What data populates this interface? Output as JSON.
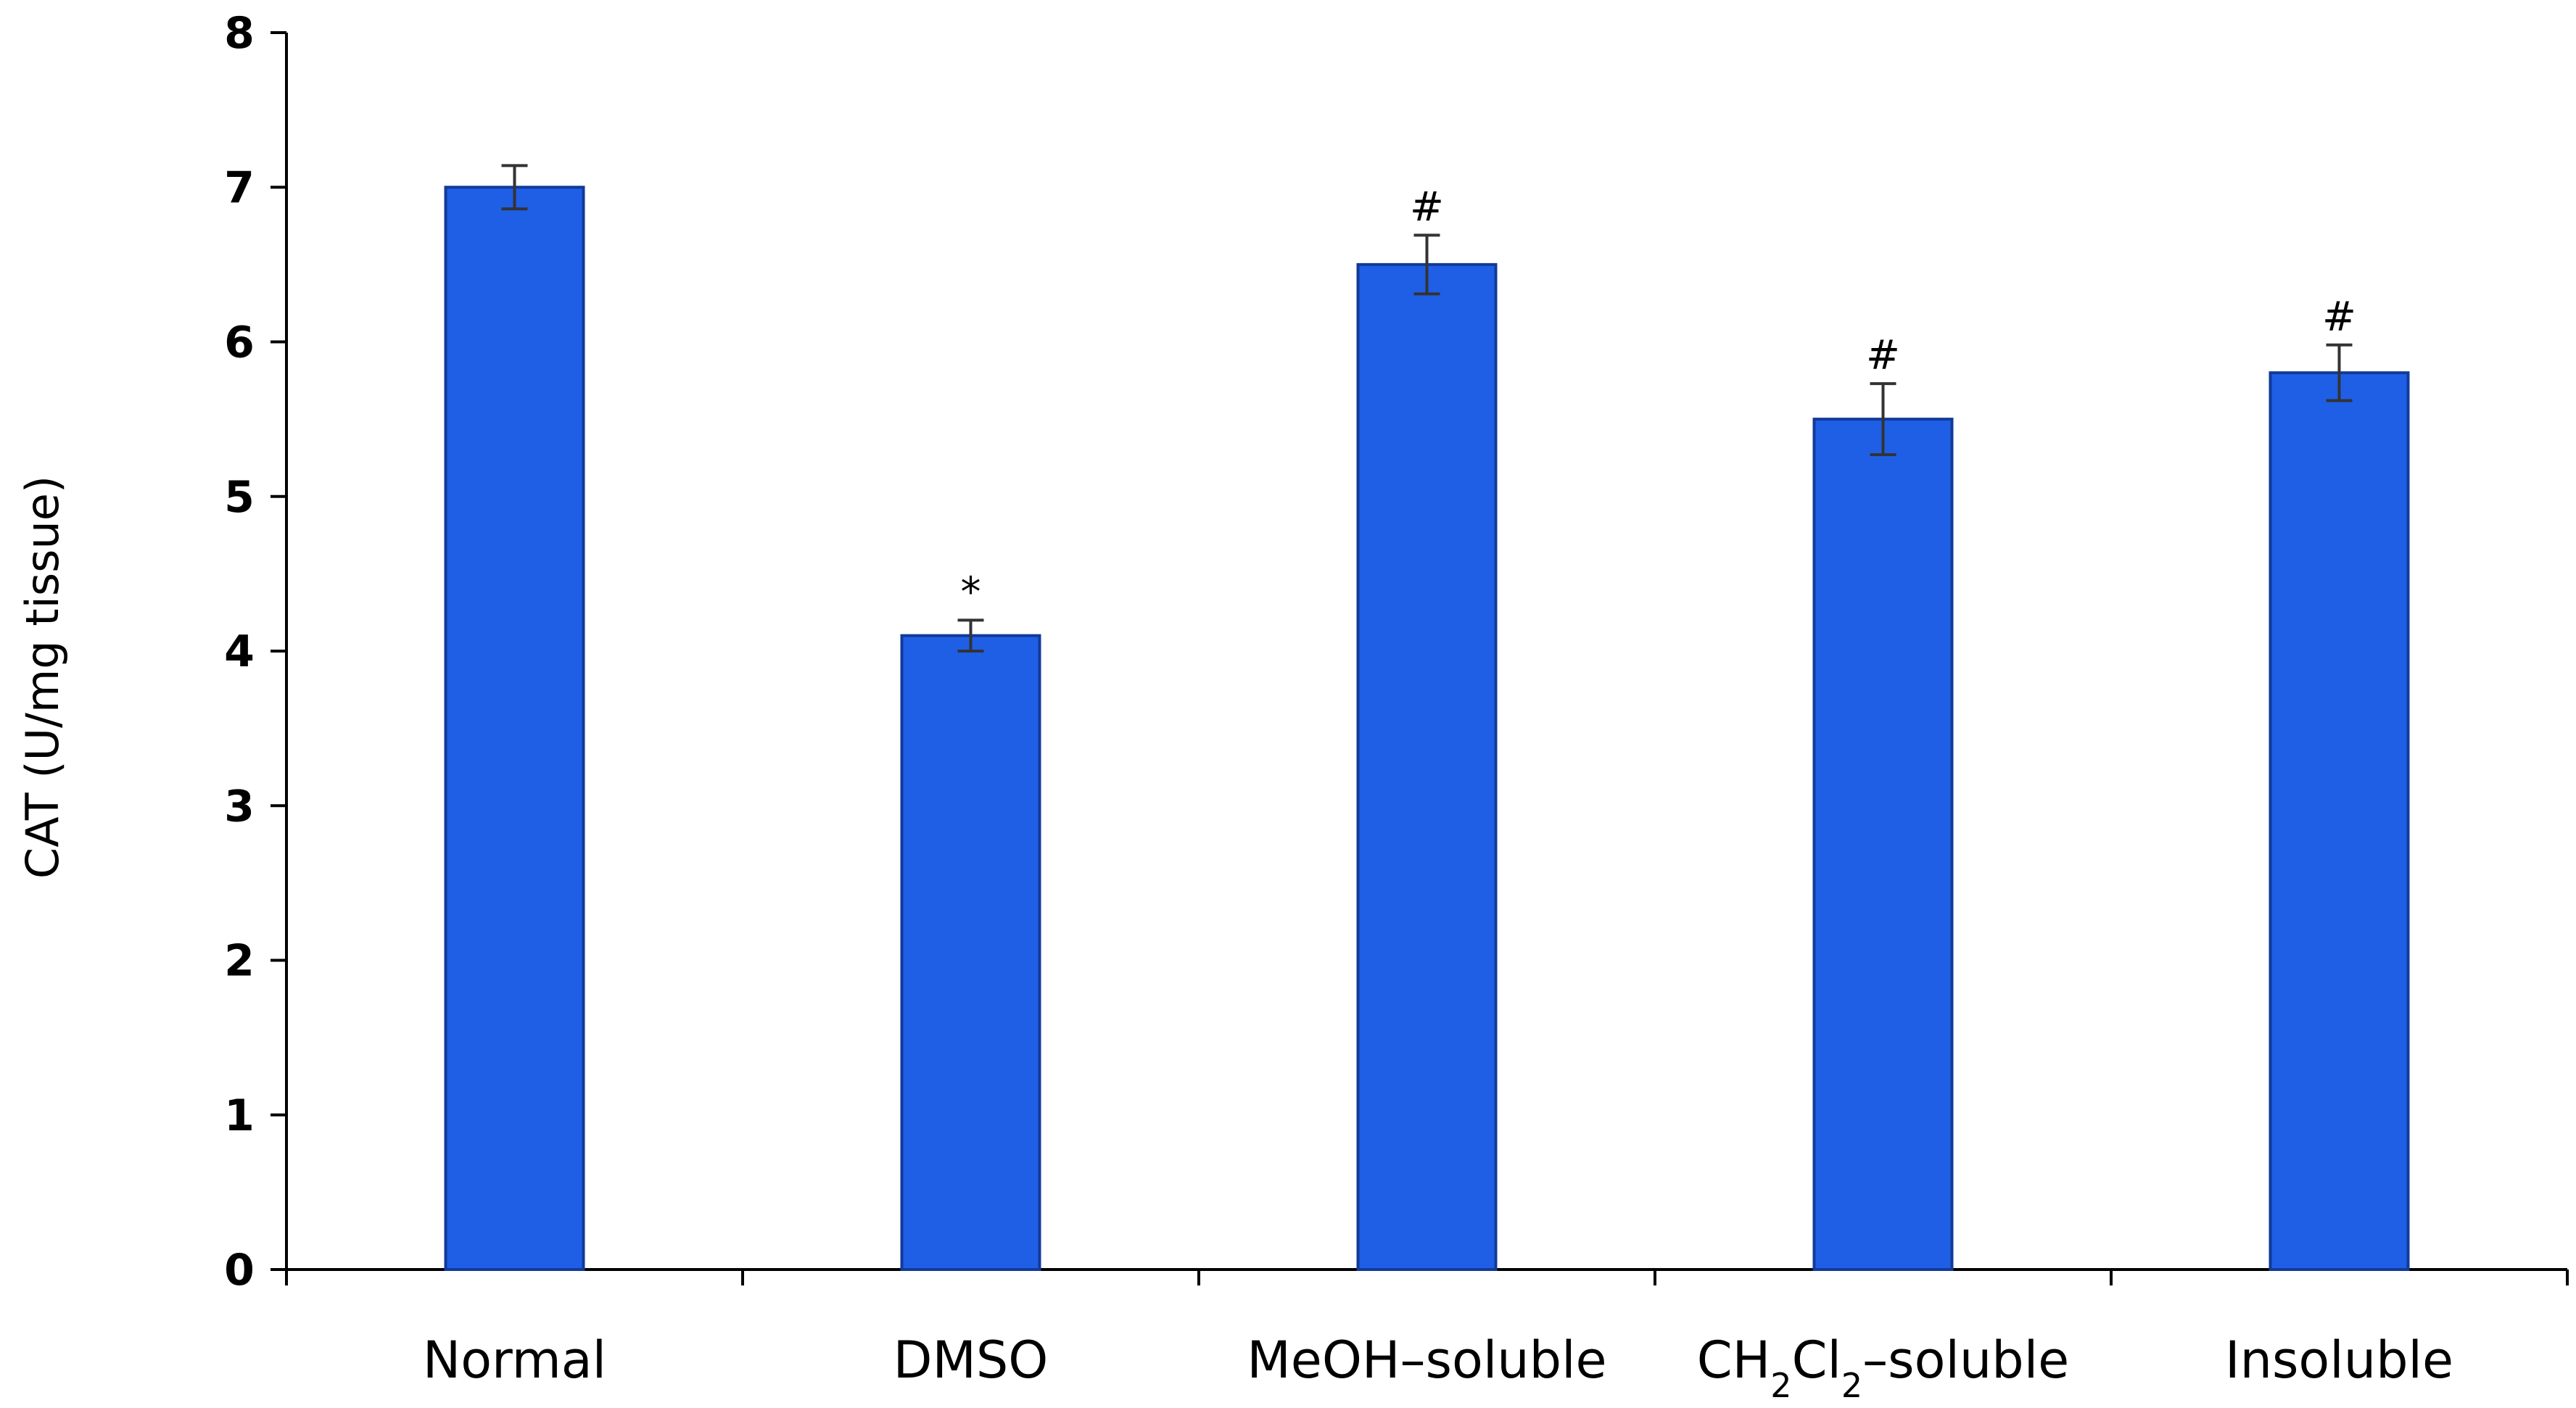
{
  "chart_data": {
    "type": "bar",
    "title": "",
    "xlabel": "",
    "ylabel": "CAT (U/mg tissue)",
    "ylim": [
      0,
      8
    ],
    "yticks": [
      "0",
      "1",
      "2",
      "3",
      "4",
      "5",
      "6",
      "7",
      "8"
    ],
    "grid": false,
    "legend": "none",
    "bar_color": "#1f5fe6",
    "bar_edge_color": "#123a99",
    "categories": [
      {
        "label": "Normal",
        "sub": "",
        "rest": ""
      },
      {
        "label": "DMSO",
        "sub": "",
        "rest": ""
      },
      {
        "label": "MeOH–soluble",
        "sub": "",
        "rest": ""
      },
      {
        "label": "CH",
        "sub": "2",
        "mid": "Cl",
        "sub2": "2",
        "rest": "–soluble"
      },
      {
        "label": "Insoluble",
        "sub": "",
        "rest": ""
      }
    ],
    "category_text": [
      "Normal",
      "DMSO",
      "MeOH–soluble",
      "CH2Cl2–soluble",
      "Insoluble"
    ],
    "values": [
      7.0,
      4.1,
      6.5,
      5.5,
      5.8
    ],
    "errors": [
      0.14,
      0.1,
      0.19,
      0.23,
      0.18
    ],
    "annotations": [
      "",
      "*",
      "#",
      "#",
      "#"
    ]
  }
}
